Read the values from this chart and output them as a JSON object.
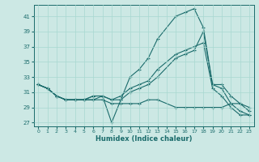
{
  "xlabel": "Humidex (Indice chaleur)",
  "bg_color": "#cce8e4",
  "line_color": "#1a6b6b",
  "grid_color": "#a8d8d0",
  "ylim": [
    26.5,
    42.5
  ],
  "xlim": [
    -0.5,
    23.5
  ],
  "yticks": [
    27,
    29,
    31,
    33,
    35,
    37,
    39,
    41
  ],
  "line1_x": [
    0,
    1,
    2,
    3,
    4,
    5,
    6,
    7,
    8,
    9,
    10,
    11,
    12,
    13,
    15,
    16,
    17,
    18,
    19,
    20,
    21,
    22,
    23
  ],
  "line1_y": [
    32,
    31.5,
    30.5,
    30,
    30,
    30,
    30.5,
    30.5,
    27,
    30,
    33,
    34,
    35.5,
    38,
    41,
    41.5,
    42,
    39.5,
    32,
    32,
    30.5,
    29.5,
    28.5
  ],
  "line2_x": [
    0,
    1,
    2,
    3,
    4,
    5,
    6,
    7,
    8,
    9,
    10,
    11,
    12,
    13,
    15,
    16,
    17,
    18,
    19,
    20,
    21,
    22,
    23
  ],
  "line2_y": [
    32,
    31.5,
    30.5,
    30,
    30,
    30,
    30.5,
    30.5,
    30,
    30,
    31,
    31.5,
    32,
    33,
    35.5,
    36,
    36.5,
    39,
    32,
    31.5,
    29.5,
    28.5,
    28
  ],
  "line3_x": [
    0,
    1,
    2,
    3,
    4,
    5,
    6,
    7,
    8,
    9,
    10,
    11,
    12,
    13,
    15,
    16,
    17,
    18,
    19,
    20,
    21,
    22,
    23
  ],
  "line3_y": [
    32,
    31.5,
    30.5,
    30,
    30,
    30,
    30,
    30,
    29.5,
    29.5,
    29.5,
    29.5,
    30,
    30,
    29,
    29,
    29,
    29,
    29,
    29,
    29.5,
    29.5,
    29
  ],
  "line4_x": [
    0,
    1,
    2,
    3,
    4,
    5,
    6,
    7,
    8,
    9,
    10,
    11,
    12,
    13,
    15,
    16,
    17,
    18,
    19,
    20,
    21,
    22,
    23
  ],
  "line4_y": [
    32,
    31.5,
    30.5,
    30,
    30,
    30,
    30,
    30.5,
    30,
    30.5,
    31.5,
    32,
    32.5,
    34,
    36,
    36.5,
    37,
    37.5,
    31.5,
    30.5,
    29,
    28,
    28
  ]
}
